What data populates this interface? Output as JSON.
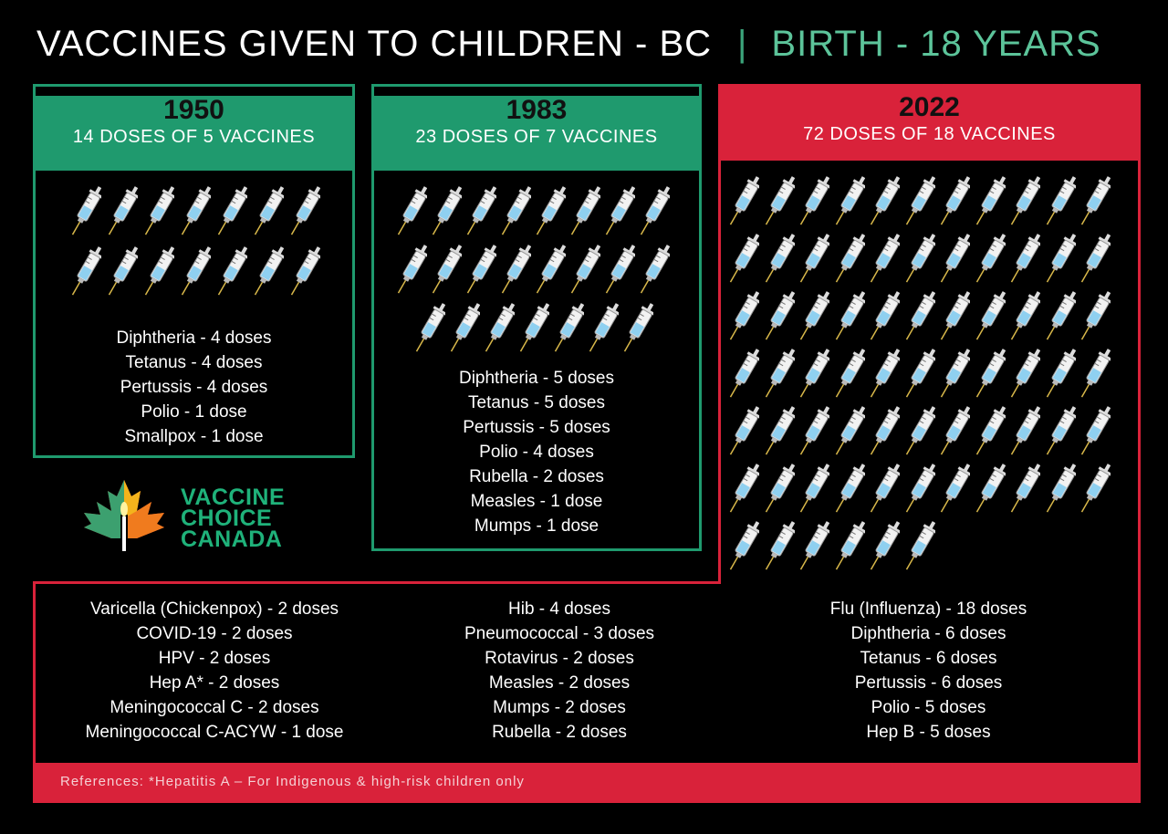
{
  "header": {
    "title": "VACCINES GIVEN TO CHILDREN - BC",
    "separator": "|",
    "subtitle": "BIRTH - 18 YEARS"
  },
  "colors": {
    "green": "#1f9a6e",
    "red": "#d9223a"
  },
  "panels": [
    {
      "year": "1950",
      "doses": "14 DOSES OF 5 VACCINES",
      "syringe_count": 14,
      "items": [
        "Diphtheria - 4 doses",
        "Tetanus - 4 doses",
        "Pertussis - 4 doses",
        "Polio - 1 dose",
        "Smallpox - 1 dose"
      ]
    },
    {
      "year": "1983",
      "doses": "23 DOSES OF 7 VACCINES",
      "syringe_count": 23,
      "items": [
        "Diphtheria - 5 doses",
        "Tetanus - 5 doses",
        "Pertussis - 5 doses",
        "Polio - 4 doses",
        "Rubella - 2 doses",
        "Measles - 1 dose",
        "Mumps - 1 dose"
      ]
    },
    {
      "year": "2022",
      "doses": "72 DOSES OF 18 VACCINES",
      "syringe_count": 72,
      "columns": [
        [
          "Varicella (Chickenpox) - 2 doses",
          "COVID-19 - 2 doses",
          "HPV - 2 doses",
          "Hep A* - 2 doses",
          "Meningococcal C - 2 doses",
          "Meningococcal C-ACYW - 1 dose"
        ],
        [
          "Hib - 4 doses",
          "Pneumococcal - 3 doses",
          "Rotavirus - 2 doses",
          "Measles - 2 doses",
          "Mumps - 2 doses",
          "Rubella - 2 doses"
        ],
        [
          "Flu (Influenza) - 18 doses",
          "Diphtheria - 6 doses",
          "Tetanus - 6 doses",
          "Pertussis - 6 doses",
          "Polio - 5 doses",
          "Hep B - 5 doses"
        ]
      ]
    }
  ],
  "logo": {
    "line1": "VACCINE",
    "line2": "CHOICE",
    "line3": "CANADA",
    "icon": "maple-leaf-candle-icon"
  },
  "footer": {
    "text": "References: *Hepatitis A – For Indigenous & high-risk children only"
  }
}
